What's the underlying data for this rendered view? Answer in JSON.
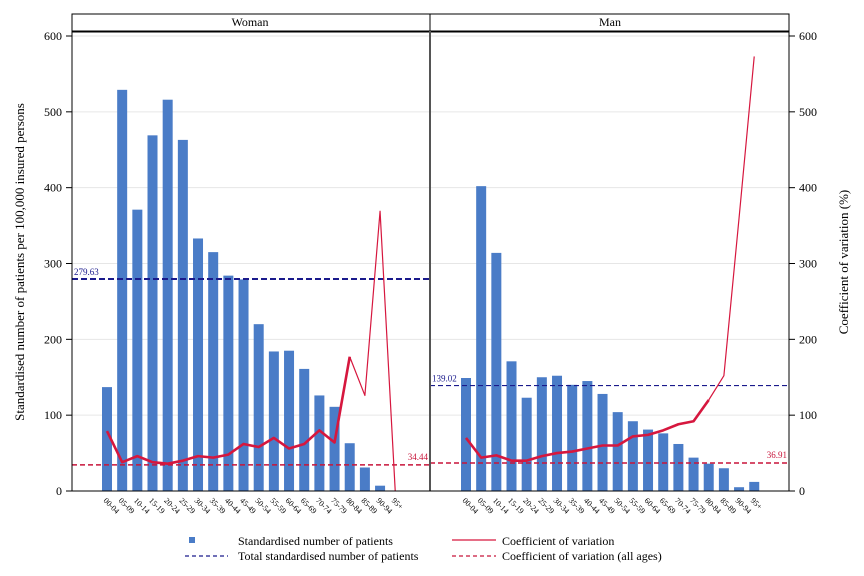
{
  "chart_data": {
    "type": "bar",
    "ylabel": "Standardised number of patients per 100,000 insured persons",
    "y2label": "Coefficient of variation (%)",
    "ylim": [
      0,
      600
    ],
    "y2lim": [
      0,
      600
    ],
    "yticks": [
      0,
      100,
      200,
      300,
      400,
      500,
      600
    ],
    "grid": true,
    "legend_position": "bottom",
    "categories": [
      "00-04",
      "05-09",
      "10-14",
      "15-19",
      "20-24",
      "25-29",
      "30-34",
      "35-39",
      "40-44",
      "45-49",
      "50-54",
      "55-59",
      "60-64",
      "65-69",
      "70-74",
      "75-79",
      "80-84",
      "85-89",
      "90-94",
      "95+"
    ],
    "panels": [
      {
        "title": "Woman",
        "bars": [
          137,
          529,
          371,
          469,
          516,
          463,
          333,
          315,
          284,
          279,
          220,
          184,
          185,
          161,
          126,
          111,
          63,
          31,
          7,
          0
        ],
        "cv": [
          79,
          38,
          46,
          38,
          36,
          40,
          46,
          44,
          48,
          62,
          58,
          70,
          56,
          62,
          80,
          64,
          177,
          126,
          369,
          0
        ],
        "total": 279.63,
        "total_label": "279.63",
        "cv_all": 34.44,
        "cv_all_label": "34.44"
      },
      {
        "title": "Man",
        "bars": [
          149,
          402,
          314,
          171,
          123,
          150,
          152,
          140,
          145,
          128,
          104,
          92,
          81,
          76,
          62,
          44,
          36,
          30,
          5,
          12
        ],
        "cv": [
          70,
          44,
          47,
          40,
          40,
          46,
          50,
          52,
          56,
          60,
          60,
          72,
          74,
          80,
          88,
          92,
          120,
          152,
          360,
          573
        ],
        "total": 139.02,
        "total_label": "139.02",
        "cv_all": 36.91,
        "cv_all_label": "36.91"
      }
    ],
    "legend": [
      {
        "label": "Standardised number of patients"
      },
      {
        "label": "Coefficient of variation"
      },
      {
        "label": "Total standardised number of patients"
      },
      {
        "label": "Coefficient of variation (all ages)"
      }
    ],
    "colors": {
      "bar": "#4a7cc7",
      "cv_line": "#d6173e",
      "total_line": "#1a1a8c",
      "cv_all_line": "#c8143a",
      "grid": "#e6e6e6",
      "frame": "#000000"
    }
  }
}
